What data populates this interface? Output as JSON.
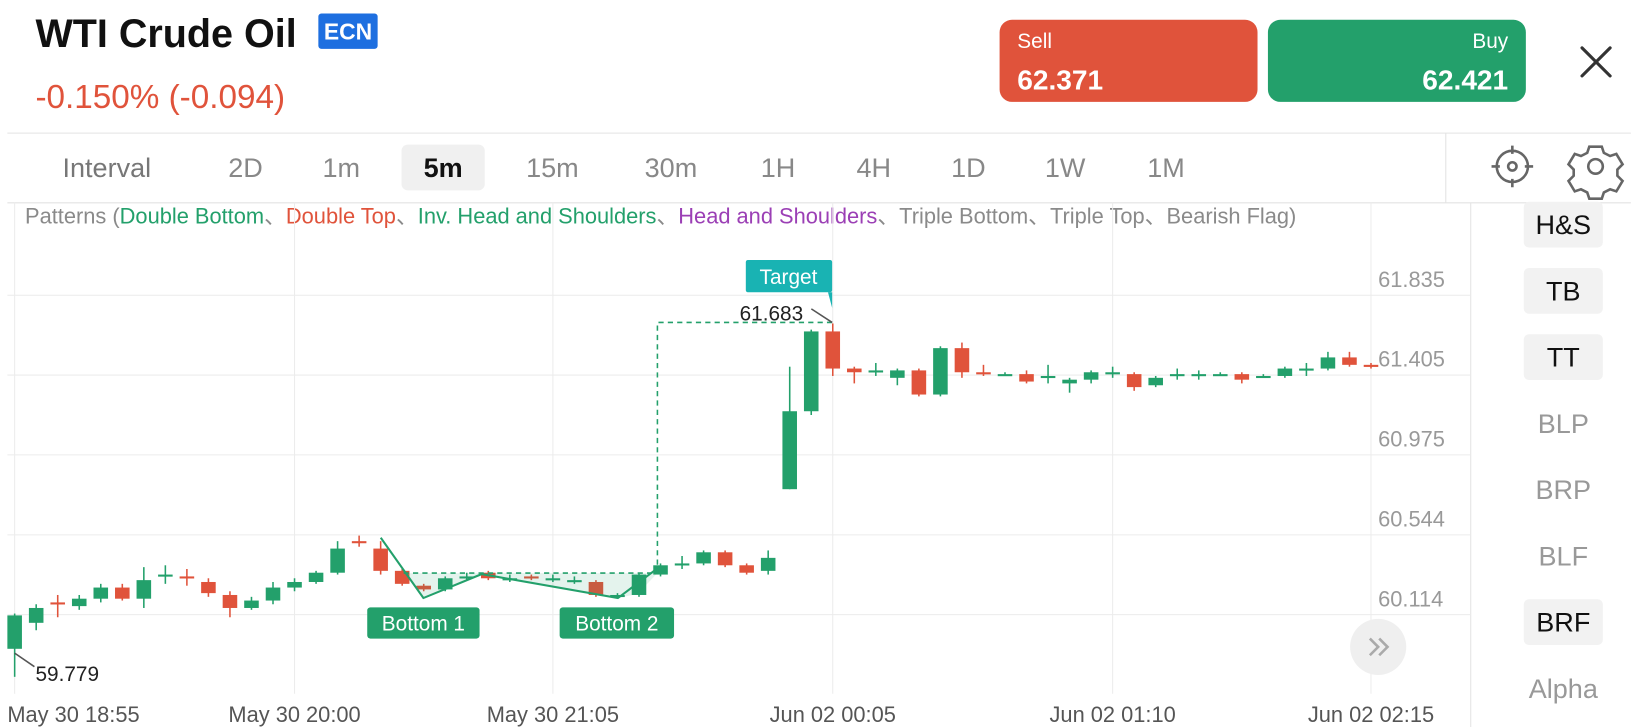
{
  "header": {
    "title": "WTI Crude Oil",
    "badge": "ECN",
    "change": "-0.150% (-0.094)"
  },
  "trade": {
    "sell_label": "Sell",
    "sell_price": "62.371",
    "buy_label": "Buy",
    "buy_price": "62.421"
  },
  "intervals": {
    "label": "Interval",
    "options": [
      "2D",
      "1m",
      "5m",
      "15m",
      "30m",
      "1H",
      "4H",
      "1D",
      "1W",
      "1M"
    ],
    "active": "5m"
  },
  "patterns": {
    "prefix": "Patterns (",
    "separator": "、",
    "suffix": ")",
    "items": [
      {
        "name": "Double Bottom",
        "color": "#23a06b"
      },
      {
        "name": "Double Top",
        "color": "#e0533b"
      },
      {
        "name": "Inv. Head and Shoulders",
        "color": "#23a06b"
      },
      {
        "name": "Head and Shoulders",
        "color": "#9b3fb5"
      },
      {
        "name": "Triple Bottom",
        "color": "#8a8a8a"
      },
      {
        "name": "Triple Top",
        "color": "#8a8a8a"
      },
      {
        "name": "Bearish Flag",
        "color": "#8a8a8a"
      }
    ]
  },
  "side_buttons": [
    {
      "label": "H&S",
      "active": true
    },
    {
      "label": "TB",
      "active": true
    },
    {
      "label": "TT",
      "active": true
    },
    {
      "label": "BLP",
      "active": false
    },
    {
      "label": "BRP",
      "active": false
    },
    {
      "label": "BLF",
      "active": false
    },
    {
      "label": "BRF",
      "active": true
    },
    {
      "label": "Alpha",
      "active": false
    }
  ],
  "chart_data": {
    "type": "candlestick",
    "categories": [
      "May 30 18:55",
      null,
      null,
      null,
      null,
      null,
      null,
      null,
      null,
      null,
      null,
      null,
      null,
      "May 30 20:00",
      null,
      null,
      null,
      null,
      null,
      null,
      null,
      null,
      null,
      null,
      null,
      "May 30 21:05",
      null,
      null,
      null,
      null,
      null,
      null,
      null,
      null,
      null,
      null,
      null,
      null,
      "Jun 02 00:05",
      null,
      null,
      null,
      null,
      null,
      null,
      null,
      null,
      null,
      null,
      null,
      null,
      "Jun 02 01:10",
      null,
      null,
      null,
      null,
      null,
      null,
      null,
      null,
      null,
      null,
      null,
      "Jun 02 02:15"
    ],
    "open": [
      59.93,
      60.07,
      60.18,
      60.16,
      60.2,
      60.26,
      60.2,
      60.33,
      60.32,
      60.29,
      60.22,
      60.15,
      60.19,
      60.26,
      60.29,
      60.34,
      60.51,
      60.47,
      60.35,
      60.27,
      60.25,
      60.32,
      60.34,
      60.31,
      60.32,
      60.31,
      60.3,
      60.29,
      60.22,
      60.22,
      60.33,
      60.39,
      60.39,
      60.45,
      60.38,
      60.35,
      60.79,
      61.21,
      61.64,
      61.44,
      61.43,
      61.39,
      61.43,
      61.3,
      61.55,
      61.42,
      61.41,
      61.41,
      61.4,
      61.36,
      61.38,
      61.42,
      61.41,
      61.35,
      61.41,
      61.41,
      61.41,
      61.41,
      61.4,
      61.4,
      61.43,
      61.44,
      61.5,
      61.46
    ],
    "high": [
      60.12,
      60.17,
      60.22,
      60.22,
      60.28,
      60.28,
      60.37,
      60.38,
      60.36,
      60.31,
      60.24,
      60.21,
      60.29,
      60.31,
      60.35,
      60.51,
      60.54,
      60.51,
      60.36,
      60.28,
      60.32,
      60.34,
      60.35,
      60.33,
      60.33,
      60.33,
      60.32,
      60.3,
      60.23,
      60.34,
      60.39,
      60.43,
      60.46,
      60.46,
      60.39,
      60.46,
      61.45,
      61.65,
      61.683,
      61.45,
      61.47,
      61.44,
      61.44,
      61.56,
      61.58,
      61.46,
      61.42,
      61.43,
      61.46,
      61.39,
      61.43,
      61.45,
      61.42,
      61.4,
      61.44,
      61.43,
      61.42,
      61.42,
      61.41,
      61.45,
      61.47,
      61.53,
      61.53,
      61.47
    ],
    "low": [
      59.779,
      60.03,
      60.1,
      60.14,
      60.18,
      60.19,
      60.15,
      60.28,
      60.27,
      60.21,
      60.1,
      60.14,
      60.17,
      60.24,
      60.28,
      60.33,
      60.48,
      60.33,
      60.27,
      60.24,
      60.24,
      60.3,
      60.3,
      60.29,
      60.3,
      60.29,
      60.28,
      60.21,
      60.2,
      60.21,
      60.32,
      60.36,
      60.38,
      60.37,
      60.33,
      60.33,
      60.79,
      61.19,
      61.4,
      61.36,
      61.4,
      61.35,
      61.29,
      61.29,
      61.39,
      61.4,
      61.4,
      61.36,
      61.36,
      61.31,
      61.36,
      61.39,
      61.32,
      61.34,
      61.38,
      61.38,
      61.4,
      61.36,
      61.39,
      61.39,
      61.4,
      61.43,
      61.45,
      61.44
    ],
    "close": [
      60.11,
      60.15,
      60.17,
      60.2,
      60.26,
      60.2,
      60.3,
      60.33,
      60.31,
      60.23,
      60.15,
      60.19,
      60.26,
      60.29,
      60.34,
      60.47,
      60.5,
      60.35,
      60.28,
      60.25,
      60.31,
      60.32,
      60.31,
      60.31,
      60.31,
      60.31,
      60.3,
      60.22,
      60.22,
      60.33,
      60.38,
      60.39,
      60.45,
      60.38,
      60.34,
      60.42,
      61.21,
      61.64,
      61.44,
      61.42,
      61.43,
      61.43,
      61.3,
      61.55,
      61.42,
      61.41,
      61.41,
      61.37,
      61.4,
      61.38,
      61.42,
      61.42,
      61.34,
      61.39,
      61.41,
      61.41,
      61.41,
      61.38,
      61.4,
      61.44,
      61.44,
      61.5,
      61.46,
      61.45
    ],
    "up_color": "#23a06b",
    "down_color": "#e0533b",
    "ylim": [
      59.688,
      62.333
    ],
    "yticks": [
      60.114,
      60.544,
      60.975,
      61.405,
      61.835
    ],
    "grid": true,
    "annotations": {
      "target": "Target",
      "bottom1": "Bottom 1",
      "bottom2": "Bottom 2"
    }
  }
}
